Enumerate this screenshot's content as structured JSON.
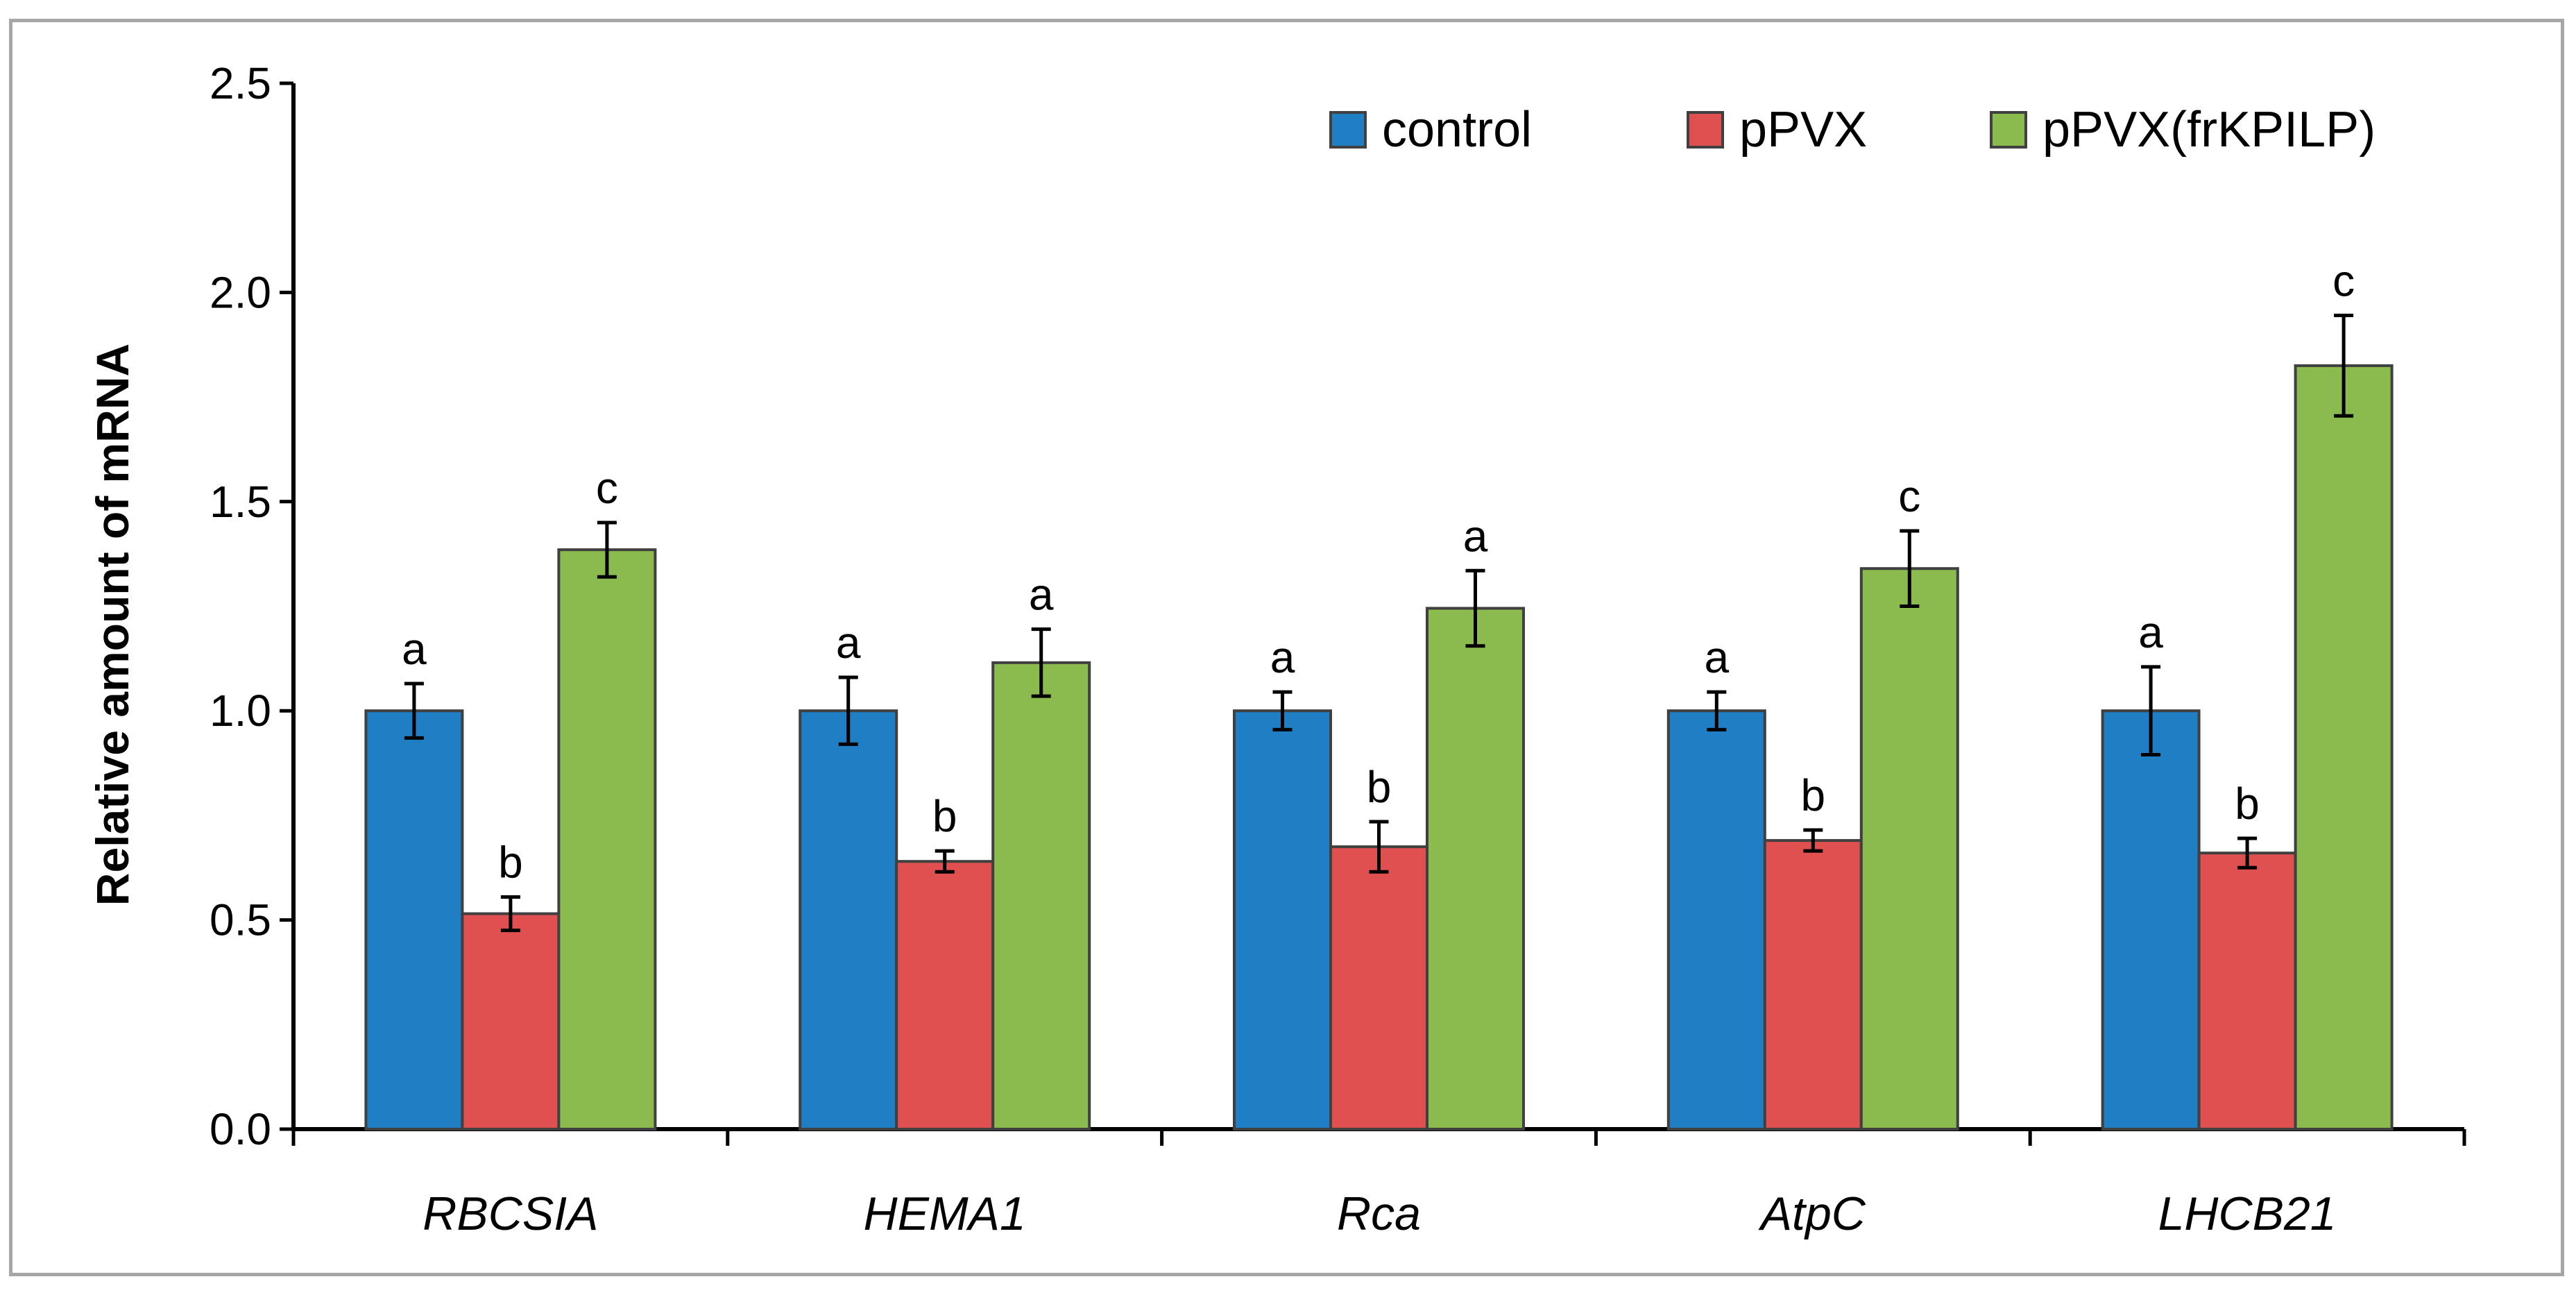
{
  "chart_data": {
    "type": "bar",
    "title": "",
    "xlabel": "",
    "ylabel": "Relative amount of mRNA",
    "ylim": [
      0,
      2.5
    ],
    "yticks": [
      "0.0",
      "0.5",
      "1.0",
      "1.5",
      "2.0",
      "2.5"
    ],
    "grid": false,
    "legend_position": "top-right",
    "categories": [
      "RBCSIA",
      "HEMA1",
      "Rca",
      "AtpC",
      "LHCB21"
    ],
    "series": [
      {
        "name": "control",
        "color": "#1F7EC4",
        "values": [
          1.0,
          1.0,
          1.0,
          1.0,
          1.0
        ],
        "errors": [
          0.065,
          0.08,
          0.045,
          0.045,
          0.105
        ],
        "labels": [
          "a",
          "a",
          "a",
          "a",
          "a"
        ]
      },
      {
        "name": "pPVX",
        "color": "#E05050",
        "values": [
          0.515,
          0.64,
          0.675,
          0.69,
          0.66
        ],
        "errors": [
          0.04,
          0.025,
          0.06,
          0.025,
          0.035
        ],
        "labels": [
          "b",
          "b",
          "b",
          "b",
          "b"
        ]
      },
      {
        "name": "pPVX(frKPILP)",
        "color": "#8BBB4E",
        "values": [
          1.385,
          1.115,
          1.245,
          1.34,
          1.825
        ],
        "errors": [
          0.065,
          0.08,
          0.09,
          0.09,
          0.12
        ],
        "labels": [
          "c",
          "a",
          "a",
          "c",
          "c"
        ]
      }
    ]
  }
}
